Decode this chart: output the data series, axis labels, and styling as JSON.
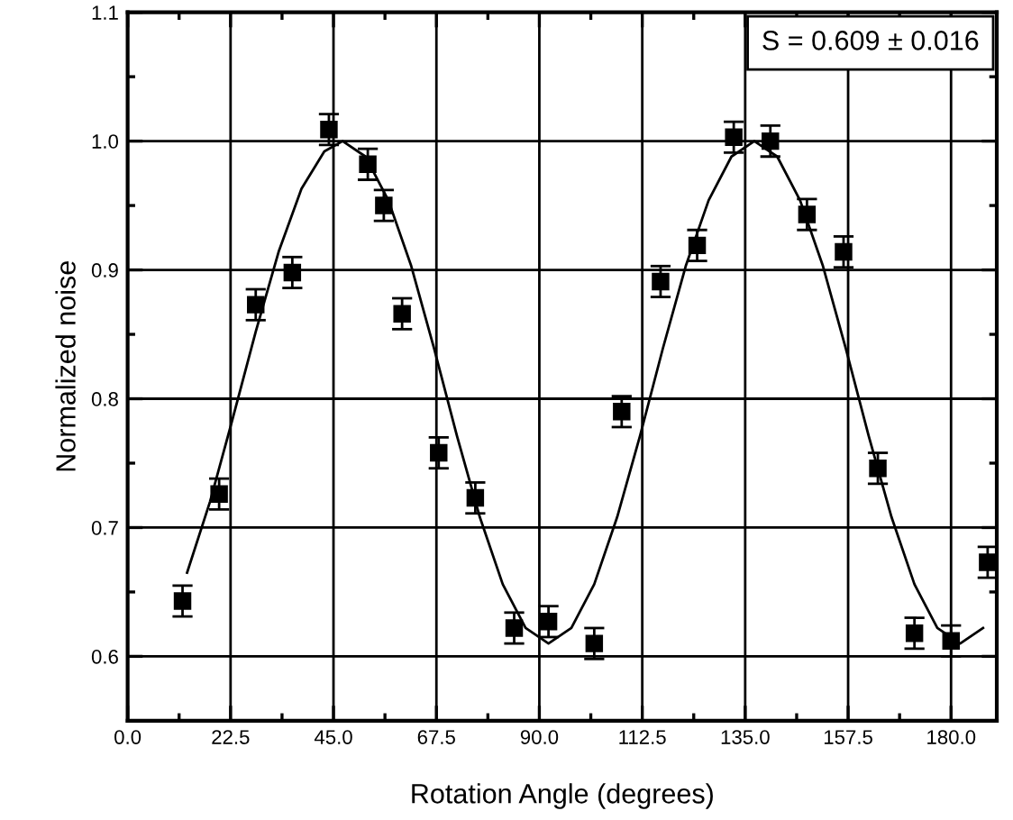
{
  "chart_data": {
    "type": "scatter",
    "xlabel": "Rotation Angle (degrees)",
    "ylabel": "Normalized noise",
    "annotations": [
      "S = 0.609 ± 0.016"
    ],
    "xlim": [
      0,
      190
    ],
    "ylim": [
      0.55,
      1.1
    ],
    "xticks": [
      {
        "value": 0,
        "label": "0.0"
      },
      22.5,
      {
        "value": 45,
        "label": "45.0"
      },
      67.5,
      {
        "value": 90,
        "label": "90.0"
      },
      112.5,
      {
        "value": 135,
        "label": "135.0"
      },
      157.5,
      {
        "value": 180,
        "label": "180.0"
      }
    ],
    "yticks": [
      0.6,
      0.7,
      0.8,
      0.9,
      {
        "value": 1.0,
        "label": "1.0"
      },
      1.1
    ],
    "grid": true,
    "legend": false,
    "series": [
      {
        "color": "#000000",
        "marker": "square",
        "x": [
          12,
          20,
          28,
          36,
          44,
          52.5,
          56,
          60,
          68,
          76,
          84.5,
          92,
          102,
          108,
          116.5,
          124.5,
          132.5,
          140.5,
          148.5,
          156.5,
          164,
          172,
          180,
          188
        ],
        "values": [
          0.643,
          0.726,
          0.873,
          0.898,
          1.009,
          0.982,
          0.95,
          0.866,
          0.758,
          0.723,
          0.622,
          0.627,
          0.61,
          0.79,
          0.891,
          0.919,
          1.003,
          1.0,
          0.943,
          0.914,
          0.746,
          0.618,
          0.612,
          0.673
        ],
        "errors": [
          0.012,
          0.012,
          0.012,
          0.012,
          0.012,
          0.012,
          0.012,
          0.012,
          0.012,
          0.012,
          0.012,
          0.012,
          0.012,
          0.012,
          0.012,
          0.012,
          0.012,
          0.012,
          0.012,
          0.012,
          0.012,
          0.012,
          0.012,
          0.012
        ]
      },
      {
        "type": "line",
        "color": "#000000",
        "marker": "none",
        "line_style": "solid",
        "x": [
          13,
          18,
          23,
          28,
          33,
          38,
          43,
          47,
          52,
          57,
          62,
          67,
          72,
          77,
          82,
          87,
          92,
          97,
          102,
          107,
          112,
          117,
          122,
          127,
          132,
          137,
          142,
          147,
          152,
          157,
          162,
          167,
          172,
          177,
          182,
          187
        ],
        "values": [
          0.665,
          0.72,
          0.785,
          0.852,
          0.914,
          0.963,
          0.992,
          1.0,
          0.988,
          0.954,
          0.903,
          0.839,
          0.771,
          0.708,
          0.656,
          0.622,
          0.61,
          0.622,
          0.656,
          0.708,
          0.771,
          0.839,
          0.903,
          0.954,
          0.988,
          1.0,
          0.988,
          0.954,
          0.903,
          0.839,
          0.771,
          0.708,
          0.656,
          0.622,
          0.61,
          0.622
        ]
      }
    ]
  }
}
